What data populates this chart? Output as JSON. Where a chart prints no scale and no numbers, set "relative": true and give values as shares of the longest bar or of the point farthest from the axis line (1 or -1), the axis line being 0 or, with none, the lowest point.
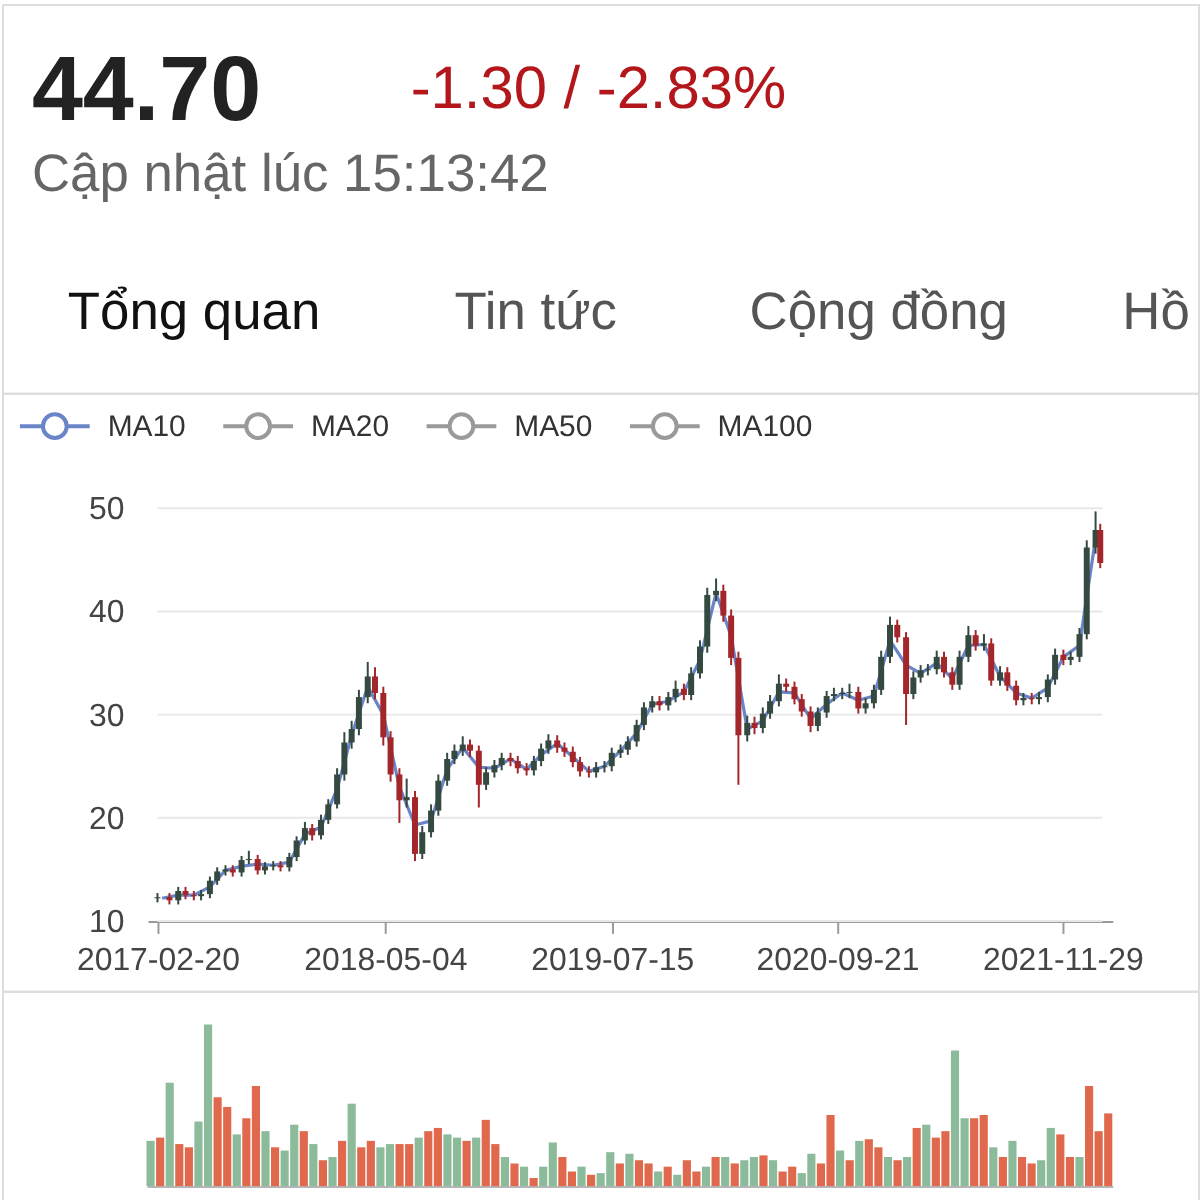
{
  "chart_data": [
    {
      "type": "other",
      "annotations": [
        "44.70",
        "-1.30 / -2.83%",
        "Cập nhật lúc 15:13:42",
        "Tổng quan",
        "Tin tức",
        "Cộng đồng",
        "Hồ"
      ]
    },
    {
      "type": "candlestick",
      "x": [
        "2017-02-20",
        "2017-03-15",
        "2017-04-01",
        "2017-04-15",
        "2017-05-01",
        "2017-05-15",
        "2017-06-01",
        "2017-06-15",
        "2017-07-01",
        "2017-07-15",
        "2017-08-01",
        "2017-08-15",
        "2017-09-01",
        "2017-09-15",
        "2017-10-01",
        "2017-10-15",
        "2017-11-01",
        "2017-11-15",
        "2017-12-01",
        "2017-12-15",
        "2018-01-01",
        "2018-01-15",
        "2018-02-01",
        "2018-02-15",
        "2018-03-01",
        "2018-03-15",
        "2018-04-01",
        "2018-04-15",
        "2018-05-01",
        "2018-05-15",
        "2018-06-01",
        "2018-06-15",
        "2018-07-01",
        "2018-07-15",
        "2018-08-01",
        "2018-08-15",
        "2018-09-01",
        "2018-09-15",
        "2018-10-01",
        "2018-10-15",
        "2018-11-01",
        "2018-11-15",
        "2018-12-01",
        "2018-12-15",
        "2019-01-01",
        "2019-01-15",
        "2019-02-01",
        "2019-02-15",
        "2019-03-01",
        "2019-03-15",
        "2019-04-01",
        "2019-04-15",
        "2019-05-01",
        "2019-05-15",
        "2019-06-01",
        "2019-06-15",
        "2019-07-01",
        "2019-07-15",
        "2019-08-01",
        "2019-08-15",
        "2019-09-01",
        "2019-09-15",
        "2019-10-01",
        "2019-10-15",
        "2019-11-01",
        "2019-11-15",
        "2019-12-01",
        "2019-12-15",
        "2020-01-01",
        "2020-01-15",
        "2020-02-01",
        "2020-02-15",
        "2020-03-01",
        "2020-03-15",
        "2020-04-01",
        "2020-04-15",
        "2020-05-01",
        "2020-05-15",
        "2020-06-01",
        "2020-06-15",
        "2020-07-01",
        "2020-07-15",
        "2020-08-01",
        "2020-08-15",
        "2020-09-01",
        "2020-09-15",
        "2020-10-01",
        "2020-10-15",
        "2020-11-01",
        "2020-11-15",
        "2020-12-01",
        "2020-12-15",
        "2021-01-01",
        "2021-01-15",
        "2021-02-01",
        "2021-02-15",
        "2021-03-01",
        "2021-03-15",
        "2021-04-01",
        "2021-04-15",
        "2021-05-01",
        "2021-05-15",
        "2021-06-01",
        "2021-06-15",
        "2021-07-01",
        "2021-07-15",
        "2021-08-01",
        "2021-08-15",
        "2021-09-01",
        "2021-09-15",
        "2021-10-01",
        "2021-10-15",
        "2021-11-01",
        "2021-11-15",
        "2021-12-01",
        "2021-12-15",
        "2022-01-01",
        "2022-01-15",
        "2022-02-01",
        "2022-02-10"
      ],
      "ohlc": [
        [
          12.2,
          12.7,
          11.8,
          12.3
        ],
        [
          12.3,
          12.7,
          11.6,
          12.0
        ],
        [
          12.0,
          13.3,
          11.6,
          12.9
        ],
        [
          12.9,
          13.3,
          12.1,
          12.5
        ],
        [
          12.5,
          12.9,
          12.0,
          12.4
        ],
        [
          12.4,
          13.0,
          12.0,
          12.6
        ],
        [
          12.6,
          14.3,
          12.2,
          13.9
        ],
        [
          13.9,
          15.2,
          13.5,
          14.8
        ],
        [
          14.8,
          15.4,
          14.4,
          15.0
        ],
        [
          15.0,
          15.4,
          14.3,
          14.7
        ],
        [
          14.7,
          16.3,
          14.3,
          15.9
        ],
        [
          15.9,
          16.8,
          15.5,
          16.0
        ],
        [
          16.0,
          16.4,
          14.5,
          14.9
        ],
        [
          14.9,
          15.7,
          14.5,
          15.3
        ],
        [
          15.3,
          15.8,
          14.9,
          15.4
        ],
        [
          15.4,
          15.8,
          14.8,
          15.2
        ],
        [
          15.2,
          16.6,
          14.8,
          16.2
        ],
        [
          16.2,
          18.2,
          15.8,
          17.8
        ],
        [
          17.8,
          19.6,
          17.4,
          19.0
        ],
        [
          19.0,
          19.4,
          17.8,
          18.3
        ],
        [
          18.3,
          20.3,
          17.9,
          19.8
        ],
        [
          19.8,
          21.8,
          19.4,
          21.3
        ],
        [
          21.3,
          24.8,
          20.9,
          24.2
        ],
        [
          24.2,
          28.3,
          23.6,
          27.3
        ],
        [
          27.3,
          29.4,
          26.7,
          28.6
        ],
        [
          28.6,
          32.4,
          28.0,
          31.7
        ],
        [
          31.7,
          35.1,
          31.1,
          33.7
        ],
        [
          33.7,
          34.6,
          31.5,
          32.1
        ],
        [
          32.1,
          32.7,
          27.0,
          27.8
        ],
        [
          27.8,
          28.4,
          23.5,
          24.2
        ],
        [
          24.2,
          24.8,
          19.5,
          21.7
        ],
        [
          21.7,
          23.8,
          21.0,
          22.0
        ],
        [
          22.0,
          22.6,
          15.8,
          16.5
        ],
        [
          16.5,
          19.2,
          16.0,
          18.6
        ],
        [
          18.6,
          21.3,
          18.1,
          20.7
        ],
        [
          20.7,
          24.2,
          20.2,
          23.6
        ],
        [
          23.6,
          26.3,
          23.1,
          25.7
        ],
        [
          25.7,
          27.1,
          25.2,
          26.5
        ],
        [
          26.5,
          27.9,
          26.0,
          27.1
        ],
        [
          27.1,
          27.6,
          25.9,
          26.5
        ],
        [
          26.5,
          27.0,
          21.0,
          23.2
        ],
        [
          23.2,
          24.9,
          22.7,
          24.4
        ],
        [
          24.4,
          25.6,
          23.9,
          25.1
        ],
        [
          25.1,
          26.3,
          24.6,
          25.8
        ],
        [
          25.8,
          26.3,
          25.0,
          25.5
        ],
        [
          25.5,
          26.0,
          24.3,
          24.8
        ],
        [
          24.8,
          25.3,
          24.1,
          24.6
        ],
        [
          24.6,
          26.0,
          24.1,
          25.5
        ],
        [
          25.5,
          27.2,
          25.0,
          26.7
        ],
        [
          26.7,
          28.1,
          26.2,
          27.5
        ],
        [
          27.5,
          28.0,
          26.3,
          26.8
        ],
        [
          26.8,
          27.3,
          25.9,
          26.4
        ],
        [
          26.4,
          26.9,
          24.9,
          25.4
        ],
        [
          25.4,
          25.9,
          24.0,
          24.5
        ],
        [
          24.5,
          25.0,
          23.9,
          24.4
        ],
        [
          24.4,
          25.4,
          23.9,
          24.9
        ],
        [
          24.9,
          25.5,
          24.4,
          25.0
        ],
        [
          25.0,
          26.8,
          24.5,
          26.3
        ],
        [
          26.3,
          27.1,
          25.8,
          26.6
        ],
        [
          26.6,
          27.9,
          26.1,
          27.4
        ],
        [
          27.4,
          29.5,
          26.9,
          29.0
        ],
        [
          29.0,
          31.2,
          28.5,
          30.7
        ],
        [
          30.7,
          31.8,
          30.2,
          31.3
        ],
        [
          31.3,
          31.8,
          30.4,
          30.9
        ],
        [
          30.9,
          32.2,
          30.4,
          31.7
        ],
        [
          31.7,
          33.3,
          31.2,
          32.5
        ],
        [
          32.5,
          33.0,
          31.4,
          31.9
        ],
        [
          31.9,
          34.6,
          31.4,
          34.0
        ],
        [
          34.0,
          37.2,
          33.5,
          36.6
        ],
        [
          36.6,
          42.3,
          36.0,
          41.6
        ],
        [
          41.6,
          43.2,
          41.0,
          42.0
        ],
        [
          42.0,
          42.6,
          39.0,
          39.6
        ],
        [
          39.6,
          40.2,
          34.8,
          35.5
        ],
        [
          35.5,
          36.1,
          23.2,
          28.0
        ],
        [
          28.0,
          29.9,
          27.4,
          29.2
        ],
        [
          29.2,
          29.8,
          28.1,
          28.7
        ],
        [
          28.7,
          30.7,
          28.2,
          30.1
        ],
        [
          30.1,
          31.9,
          29.6,
          31.3
        ],
        [
          31.3,
          33.9,
          30.8,
          33.0
        ],
        [
          33.0,
          33.5,
          32.2,
          32.7
        ],
        [
          32.7,
          33.2,
          31.0,
          31.5
        ],
        [
          31.5,
          32.0,
          29.8,
          30.3
        ],
        [
          30.3,
          30.8,
          28.3,
          28.9
        ],
        [
          28.9,
          30.7,
          28.4,
          30.2
        ],
        [
          30.2,
          32.3,
          29.7,
          31.8
        ],
        [
          31.8,
          32.6,
          31.3,
          32.0
        ],
        [
          32.0,
          32.6,
          31.5,
          32.1
        ],
        [
          32.1,
          33.0,
          31.6,
          32.2
        ],
        [
          32.2,
          32.7,
          30.1,
          30.6
        ],
        [
          30.6,
          31.6,
          30.1,
          31.1
        ],
        [
          31.1,
          32.9,
          30.6,
          32.4
        ],
        [
          32.4,
          36.2,
          31.9,
          35.6
        ],
        [
          35.6,
          39.5,
          35.0,
          38.7
        ],
        [
          38.7,
          39.2,
          37.0,
          37.5
        ],
        [
          37.5,
          38.0,
          29.0,
          32.0
        ],
        [
          32.0,
          34.2,
          31.5,
          33.6
        ],
        [
          33.6,
          34.8,
          33.1,
          34.3
        ],
        [
          34.3,
          34.9,
          33.8,
          34.4
        ],
        [
          34.4,
          36.2,
          33.9,
          35.6
        ],
        [
          35.6,
          36.1,
          33.6,
          34.1
        ],
        [
          34.1,
          34.6,
          32.4,
          32.9
        ],
        [
          32.9,
          36.2,
          32.4,
          35.6
        ],
        [
          35.6,
          38.6,
          35.1,
          37.7
        ],
        [
          37.7,
          38.2,
          36.2,
          36.7
        ],
        [
          36.7,
          37.8,
          36.2,
          36.9
        ],
        [
          36.9,
          37.4,
          32.8,
          33.3
        ],
        [
          33.3,
          34.7,
          32.8,
          34.1
        ],
        [
          34.1,
          34.6,
          32.3,
          32.8
        ],
        [
          32.8,
          33.3,
          30.9,
          31.4
        ],
        [
          31.4,
          32.1,
          30.9,
          31.6
        ],
        [
          31.6,
          32.1,
          31.0,
          31.5
        ],
        [
          31.5,
          32.2,
          31.0,
          31.7
        ],
        [
          31.7,
          33.9,
          31.2,
          33.4
        ],
        [
          33.4,
          36.4,
          32.9,
          35.8
        ],
        [
          35.8,
          36.3,
          34.8,
          35.3
        ],
        [
          35.3,
          36.1,
          34.8,
          35.6
        ],
        [
          35.6,
          38.4,
          35.1,
          37.8
        ],
        [
          37.8,
          46.9,
          37.3,
          46.2
        ],
        [
          46.2,
          49.7,
          45.6,
          47.9
        ],
        [
          47.9,
          48.5,
          44.2,
          44.7
        ]
      ],
      "colors": [
        "#34493f",
        "#a3262a",
        "#34493f",
        "#a3262a",
        "#a3262a",
        "#34493f",
        "#34493f",
        "#34493f",
        "#34493f",
        "#a3262a",
        "#34493f",
        "#34493f",
        "#a3262a",
        "#34493f",
        "#34493f",
        "#a3262a",
        "#34493f",
        "#34493f",
        "#34493f",
        "#a3262a",
        "#34493f",
        "#34493f",
        "#34493f",
        "#34493f",
        "#34493f",
        "#34493f",
        "#34493f",
        "#a3262a",
        "#a3262a",
        "#a3262a",
        "#a3262a",
        "#34493f",
        "#a3262a",
        "#34493f",
        "#34493f",
        "#34493f",
        "#34493f",
        "#34493f",
        "#34493f",
        "#a3262a",
        "#a3262a",
        "#34493f",
        "#34493f",
        "#34493f",
        "#a3262a",
        "#a3262a",
        "#a3262a",
        "#34493f",
        "#34493f",
        "#34493f",
        "#a3262a",
        "#a3262a",
        "#a3262a",
        "#a3262a",
        "#a3262a",
        "#34493f",
        "#34493f",
        "#34493f",
        "#34493f",
        "#34493f",
        "#34493f",
        "#34493f",
        "#34493f",
        "#a3262a",
        "#34493f",
        "#34493f",
        "#a3262a",
        "#34493f",
        "#34493f",
        "#34493f",
        "#34493f",
        "#a3262a",
        "#a3262a",
        "#a3262a",
        "#34493f",
        "#a3262a",
        "#34493f",
        "#34493f",
        "#34493f",
        "#a3262a",
        "#a3262a",
        "#a3262a",
        "#a3262a",
        "#34493f",
        "#34493f",
        "#34493f",
        "#34493f",
        "#34493f",
        "#a3262a",
        "#34493f",
        "#34493f",
        "#34493f",
        "#34493f",
        "#a3262a",
        "#a3262a",
        "#34493f",
        "#34493f",
        "#34493f",
        "#34493f",
        "#a3262a",
        "#a3262a",
        "#34493f",
        "#34493f",
        "#a3262a",
        "#34493f",
        "#a3262a",
        "#34493f",
        "#a3262a",
        "#a3262a",
        "#34493f",
        "#a3262a",
        "#34493f",
        "#34493f",
        "#34493f",
        "#a3262a",
        "#34493f",
        "#34493f",
        "#34493f",
        "#34493f",
        "#a3262a"
      ],
      "series": [
        {
          "name": "MA10",
          "type": "line",
          "color": "#6a84c8",
          "x": [
            "2017-03-01",
            "2017-04-01",
            "2017-05-01",
            "2017-06-01",
            "2017-07-01",
            "2017-08-01",
            "2017-09-01",
            "2017-10-01",
            "2017-11-01",
            "2017-12-01",
            "2018-01-01",
            "2018-02-01",
            "2018-03-01",
            "2018-04-01",
            "2018-05-01",
            "2018-06-01",
            "2018-07-01",
            "2018-08-01",
            "2018-09-01",
            "2018-10-01",
            "2018-11-01",
            "2018-12-01",
            "2019-01-01",
            "2019-02-01",
            "2019-03-01",
            "2019-04-01",
            "2019-05-01",
            "2019-06-01",
            "2019-07-01",
            "2019-08-01",
            "2019-09-01",
            "2019-10-01",
            "2019-11-01",
            "2019-12-01",
            "2020-01-01",
            "2020-02-01",
            "2020-03-01",
            "2020-04-01",
            "2020-05-01",
            "2020-06-01",
            "2020-07-01",
            "2020-08-01",
            "2020-09-01",
            "2020-10-01",
            "2020-11-01",
            "2020-12-01",
            "2021-01-01",
            "2021-02-01",
            "2021-03-01",
            "2021-04-01",
            "2021-05-01",
            "2021-06-01",
            "2021-07-01",
            "2021-08-01",
            "2021-09-01",
            "2021-10-01",
            "2021-11-01",
            "2021-12-01",
            "2022-01-01",
            "2022-02-01",
            "2022-02-10"
          ],
          "values": [
            12.2,
            12.5,
            12.5,
            13.3,
            14.9,
            15.3,
            15.5,
            15.4,
            15.7,
            18.4,
            19.1,
            22.8,
            28.0,
            32.7,
            30.0,
            23.0,
            19.3,
            19.7,
            24.7,
            26.8,
            24.9,
            24.8,
            25.7,
            24.7,
            26.1,
            27.2,
            25.9,
            24.5,
            25.0,
            26.5,
            28.2,
            31.0,
            31.3,
            32.2,
            35.3,
            41.8,
            37.6,
            28.6,
            29.4,
            32.2,
            32.1,
            29.6,
            31.0,
            32.1,
            31.4,
            31.8,
            37.2,
            34.8,
            34.0,
            35.0,
            33.5,
            36.7,
            36.8,
            33.7,
            32.1,
            31.6,
            32.6,
            35.6,
            36.7,
            47.1,
            46.3
          ]
        },
        {
          "name": "MA20",
          "type": "line",
          "color": "#9a9a9a",
          "values": [
            null,
            null,
            null,
            null,
            null,
            null,
            null,
            null,
            null,
            null,
            null,
            null,
            null,
            null,
            null,
            null,
            null,
            null,
            null,
            null,
            null,
            null,
            null,
            null,
            null,
            null,
            null,
            null,
            null,
            null,
            null,
            null,
            null,
            null,
            null,
            null,
            null,
            null,
            null,
            null,
            null,
            null,
            null,
            null,
            null,
            null,
            null,
            null,
            null,
            null,
            null,
            null,
            null,
            null,
            null,
            null,
            null,
            null,
            null,
            null,
            null,
            null,
            null,
            null,
            null,
            null,
            null,
            null,
            null,
            null,
            null,
            null,
            null,
            null,
            null,
            null,
            null,
            null,
            null,
            null,
            null,
            null,
            null,
            null,
            null,
            null,
            null,
            null,
            null,
            null,
            null,
            null,
            null,
            null,
            null,
            null,
            null,
            null,
            null,
            null,
            null,
            null,
            null,
            null,
            null,
            null,
            null,
            null,
            null,
            null,
            null,
            null,
            null,
            null,
            null,
            null,
            null,
            null,
            null,
            null
          ]
        },
        {
          "name": "MA50",
          "type": "line",
          "color": "#9a9a9a",
          "values": [
            null,
            null,
            null,
            null,
            null,
            null,
            null,
            null,
            null,
            null,
            null,
            null,
            null,
            null,
            null,
            null,
            null,
            null,
            null,
            null,
            null,
            null,
            null,
            null,
            null,
            null,
            null,
            null,
            null,
            null,
            null,
            null,
            null,
            null,
            null,
            null,
            null,
            null,
            null,
            null,
            null,
            null,
            null,
            null,
            null,
            null,
            null,
            null,
            null,
            null,
            null,
            null,
            null,
            null,
            null,
            null,
            null,
            null,
            null,
            null,
            null,
            null,
            null,
            null,
            null,
            null,
            null,
            null,
            null,
            null,
            null,
            null,
            null,
            null,
            null,
            null,
            null,
            null,
            null,
            null,
            null,
            null,
            null,
            null,
            null,
            null,
            null,
            null,
            null,
            null,
            null,
            null,
            null,
            null,
            null,
            null,
            null,
            null,
            null,
            null,
            null,
            null,
            null,
            null,
            null,
            null,
            null,
            null,
            null,
            null,
            null,
            null,
            null,
            null,
            null,
            null,
            null,
            null,
            null,
            null
          ]
        },
        {
          "name": "MA100",
          "type": "line",
          "color": "#9a9a9a",
          "values": [
            null,
            null,
            null,
            null,
            null,
            null,
            null,
            null,
            null,
            null,
            null,
            null,
            null,
            null,
            null,
            null,
            null,
            null,
            null,
            null,
            null,
            null,
            null,
            null,
            null,
            null,
            null,
            null,
            null,
            null,
            null,
            null,
            null,
            null,
            null,
            null,
            null,
            null,
            null,
            null,
            null,
            null,
            null,
            null,
            null,
            null,
            null,
            null,
            null,
            null,
            null,
            null,
            null,
            null,
            null,
            null,
            null,
            null,
            null,
            null,
            null,
            null,
            null,
            null,
            null,
            null,
            null,
            null,
            null,
            null,
            null,
            null,
            null,
            null,
            null,
            null,
            null,
            null,
            null,
            null,
            null,
            null,
            null,
            null,
            null,
            null,
            null,
            null,
            null,
            null,
            null,
            null,
            null,
            null,
            null,
            null,
            null,
            null,
            null,
            null,
            null,
            null,
            null,
            null,
            null,
            null,
            null,
            null,
            null,
            null,
            null,
            null,
            null,
            null,
            null,
            null,
            null,
            null,
            null,
            null
          ]
        }
      ],
      "xlim": [
        "2017-02-20",
        "2022-02-14"
      ],
      "xticks": [
        "2017-02-20",
        "2018-05-04",
        "2019-07-15",
        "2020-09-21",
        "2021-11-29"
      ],
      "ylim": [
        10,
        50
      ],
      "yticks": [
        10,
        20,
        30,
        40,
        50
      ],
      "grid": "y",
      "legend": "top left"
    },
    {
      "type": "bar",
      "relative": true,
      "categories": [
        null,
        null,
        null,
        null,
        null,
        null,
        null,
        null,
        null,
        null,
        null,
        null,
        null,
        null,
        null,
        null,
        null,
        null,
        null,
        null,
        null,
        null,
        null,
        null,
        null,
        null,
        null,
        null,
        null,
        null,
        null,
        null,
        null,
        null,
        null,
        null,
        null,
        null,
        null,
        null,
        null,
        null,
        null,
        null,
        null,
        null,
        null,
        null,
        null,
        null,
        null,
        null,
        null,
        null,
        null,
        null,
        null,
        null,
        null,
        null,
        null,
        null,
        null,
        null,
        null,
        null,
        null,
        null,
        null,
        null,
        null,
        null,
        null,
        null,
        null,
        null,
        null,
        null,
        null,
        null,
        null,
        null,
        null,
        null,
        null,
        null,
        null,
        null,
        null,
        null,
        null,
        null,
        null,
        null,
        null,
        null,
        null,
        null,
        null,
        null,
        null
      ],
      "values": [
        0.28,
        0.3,
        0.64,
        0.26,
        0.24,
        0.4,
        1.0,
        0.55,
        0.49,
        0.32,
        0.42,
        0.62,
        0.34,
        0.24,
        0.22,
        0.38,
        0.34,
        0.26,
        0.16,
        0.18,
        0.28,
        0.51,
        0.24,
        0.28,
        0.24,
        0.26,
        0.26,
        0.26,
        0.3,
        0.34,
        0.36,
        0.32,
        0.3,
        0.28,
        0.3,
        0.41,
        0.26,
        0.18,
        0.14,
        0.12,
        0.05,
        0.12,
        0.27,
        0.18,
        0.09,
        0.12,
        0.07,
        0.08,
        0.21,
        0.14,
        0.2,
        0.16,
        0.14,
        0.09,
        0.12,
        0.07,
        0.16,
        0.09,
        0.12,
        0.18,
        0.18,
        0.14,
        0.16,
        0.18,
        0.19,
        0.16,
        0.09,
        0.12,
        0.08,
        0.2,
        0.14,
        0.44,
        0.22,
        0.16,
        0.28,
        0.29,
        0.24,
        0.18,
        0.16,
        0.18,
        0.36,
        0.38,
        0.3,
        0.34,
        0.84,
        0.42,
        0.42,
        0.44,
        0.24,
        0.18,
        0.28,
        0.18,
        0.14,
        0.16,
        0.36,
        0.32,
        0.18,
        0.18,
        0.62,
        0.34,
        0.45
      ],
      "colors": [
        "#8cbb9c",
        "#e0694d",
        "#8cbb9c",
        "#e0694d",
        "#e0694d",
        "#8cbb9c",
        "#8cbb9c",
        "#e0694d",
        "#e0694d",
        "#8cbb9c",
        "#e0694d",
        "#e0694d",
        "#8cbb9c",
        "#e0694d",
        "#8cbb9c",
        "#8cbb9c",
        "#e0694d",
        "#8cbb9c",
        "#e0694d",
        "#8cbb9c",
        "#e0694d",
        "#8cbb9c",
        "#e0694d",
        "#e0694d",
        "#8cbb9c",
        "#8cbb9c",
        "#e0694d",
        "#e0694d",
        "#8cbb9c",
        "#e0694d",
        "#e0694d",
        "#8cbb9c",
        "#8cbb9c",
        "#e0694d",
        "#8cbb9c",
        "#e0694d",
        "#e0694d",
        "#8cbb9c",
        "#e0694d",
        "#8cbb9c",
        "#e0694d",
        "#8cbb9c",
        "#8cbb9c",
        "#e0694d",
        "#e0694d",
        "#8cbb9c",
        "#e0694d",
        "#8cbb9c",
        "#8cbb9c",
        "#e0694d",
        "#8cbb9c",
        "#e0694d",
        "#e0694d",
        "#8cbb9c",
        "#e0694d",
        "#8cbb9c",
        "#e0694d",
        "#e0694d",
        "#8cbb9c",
        "#e0694d",
        "#8cbb9c",
        "#e0694d",
        "#8cbb9c",
        "#8cbb9c",
        "#e0694d",
        "#8cbb9c",
        "#e0694d",
        "#e0694d",
        "#8cbb9c",
        "#8cbb9c",
        "#e0694d",
        "#e0694d",
        "#8cbb9c",
        "#e0694d",
        "#8cbb9c",
        "#e0694d",
        "#e0694d",
        "#8cbb9c",
        "#e0694d",
        "#8cbb9c",
        "#e0694d",
        "#8cbb9c",
        "#e0694d",
        "#e0694d",
        "#8cbb9c",
        "#8cbb9c",
        "#e0694d",
        "#e0694d",
        "#8cbb9c",
        "#e0694d",
        "#8cbb9c",
        "#e0694d",
        "#e0694d",
        "#8cbb9c",
        "#8cbb9c",
        "#e0694d",
        "#e0694d",
        "#8cbb9c",
        "#e0694d",
        "#e0694d",
        "#e0694d"
      ]
    }
  ]
}
